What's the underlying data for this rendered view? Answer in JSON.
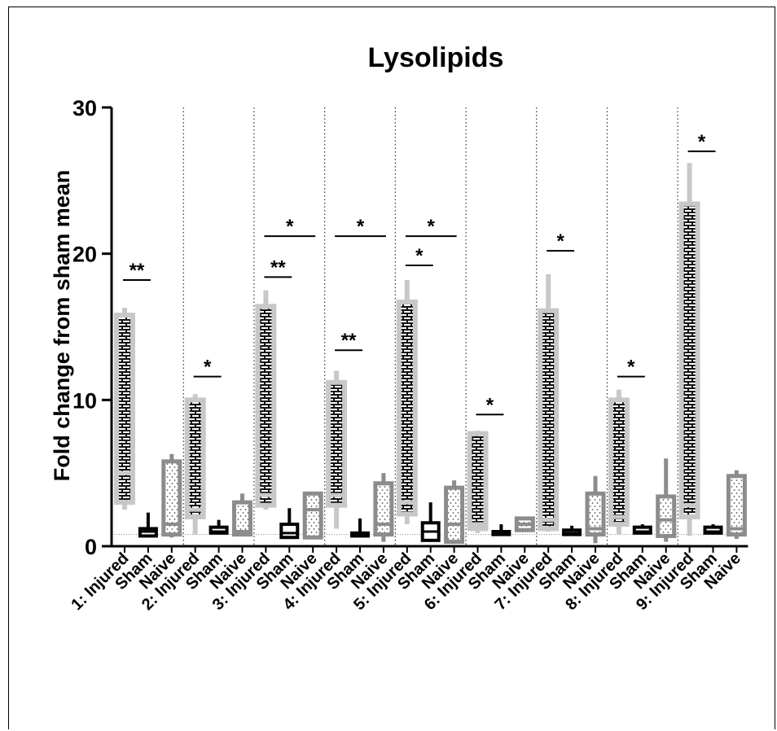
{
  "chart_data": {
    "type": "box",
    "title": "Lysolipids",
    "xlabel": "",
    "ylabel": "Fold change from sham mean",
    "ylim": [
      0,
      30
    ],
    "yticks": [
      0,
      10,
      20,
      30
    ],
    "reference_line_y": 0.8,
    "groups": [
      "1",
      "2",
      "3",
      "4",
      "5",
      "6",
      "7",
      "8",
      "9"
    ],
    "categories": [
      "1: Injured",
      "Sham",
      "Naive",
      "2: Injured",
      "Sham",
      "Naive",
      "3: Injured",
      "Sham",
      "Naive",
      "4: Injured",
      "Sham",
      "Naive",
      "5: Injured",
      "Sham",
      "Naive",
      "6: Injured",
      "Sham",
      "Naive",
      "7: Injured",
      "Sham",
      "Naive",
      "8: Injured",
      "Sham",
      "Naive",
      "9: Injured",
      "Sham",
      "Naive"
    ],
    "boxes": [
      {
        "condition": "Injured",
        "min": 2.5,
        "q1": 3.0,
        "median": 5.0,
        "q3": 15.8,
        "max": 16.3
      },
      {
        "condition": "Sham",
        "min": 0.6,
        "q1": 0.7,
        "median": 1.0,
        "q3": 1.2,
        "max": 2.3
      },
      {
        "condition": "Naive",
        "min": 0.6,
        "q1": 0.8,
        "median": 1.5,
        "q3": 5.8,
        "max": 6.3
      },
      {
        "condition": "Injured",
        "min": 0.8,
        "q1": 2.0,
        "median": 2.5,
        "q3": 10.0,
        "max": 10.4
      },
      {
        "condition": "Sham",
        "min": 0.8,
        "q1": 0.9,
        "median": 1.0,
        "q3": 1.3,
        "max": 1.8
      },
      {
        "condition": "Naive",
        "min": 0.8,
        "q1": 0.8,
        "median": 1.0,
        "q3": 3.0,
        "max": 3.6
      },
      {
        "condition": "Injured",
        "min": 2.5,
        "q1": 2.8,
        "median": 3.5,
        "q3": 16.4,
        "max": 17.5
      },
      {
        "condition": "Sham",
        "min": 0.6,
        "q1": 0.6,
        "median": 0.9,
        "q3": 1.5,
        "max": 2.6
      },
      {
        "condition": "Naive",
        "min": 0.5,
        "q1": 0.6,
        "median": 2.5,
        "q3": 3.6,
        "max": 3.7
      },
      {
        "condition": "Injured",
        "min": 1.2,
        "q1": 2.8,
        "median": 3.5,
        "q3": 11.2,
        "max": 12.0
      },
      {
        "condition": "Sham",
        "min": 0.7,
        "q1": 0.7,
        "median": 0.8,
        "q3": 0.9,
        "max": 1.9
      },
      {
        "condition": "Naive",
        "min": 0.3,
        "q1": 0.8,
        "median": 1.5,
        "q3": 4.3,
        "max": 5.0
      },
      {
        "condition": "Injured",
        "min": 1.5,
        "q1": 2.2,
        "median": 3.0,
        "q3": 16.7,
        "max": 18.2
      },
      {
        "condition": "Sham",
        "min": 0.4,
        "q1": 0.4,
        "median": 1.0,
        "q3": 1.6,
        "max": 3.0
      },
      {
        "condition": "Naive",
        "min": 0.2,
        "q1": 0.3,
        "median": 1.5,
        "q3": 4.0,
        "max": 4.5
      },
      {
        "condition": "Injured",
        "min": 0.9,
        "q1": 1.2,
        "median": 1.5,
        "q3": 7.7,
        "max": 7.9
      },
      {
        "condition": "Sham",
        "min": 0.8,
        "q1": 0.8,
        "median": 0.9,
        "q3": 1.0,
        "max": 1.5
      },
      {
        "condition": "Naive",
        "min": 1.0,
        "q1": 1.1,
        "median": 1.5,
        "q3": 1.9,
        "max": 2.0
      },
      {
        "condition": "Injured",
        "min": 1.0,
        "q1": 1.2,
        "median": 1.8,
        "q3": 16.1,
        "max": 18.6
      },
      {
        "condition": "Sham",
        "min": 0.8,
        "q1": 0.8,
        "median": 0.9,
        "q3": 1.1,
        "max": 1.4
      },
      {
        "condition": "Naive",
        "min": 0.2,
        "q1": 0.8,
        "median": 1.2,
        "q3": 3.6,
        "max": 4.8
      },
      {
        "condition": "Injured",
        "min": 0.8,
        "q1": 1.5,
        "median": 2.0,
        "q3": 10.0,
        "max": 10.7
      },
      {
        "condition": "Sham",
        "min": 0.8,
        "q1": 0.9,
        "median": 1.0,
        "q3": 1.3,
        "max": 1.5
      },
      {
        "condition": "Naive",
        "min": 0.3,
        "q1": 0.7,
        "median": 1.8,
        "q3": 3.4,
        "max": 6.0
      },
      {
        "condition": "Injured",
        "min": 0.7,
        "q1": 2.0,
        "median": 2.8,
        "q3": 23.4,
        "max": 26.2
      },
      {
        "condition": "Sham",
        "min": 0.8,
        "q1": 0.9,
        "median": 1.0,
        "q3": 1.3,
        "max": 1.5
      },
      {
        "condition": "Naive",
        "min": 0.5,
        "q1": 0.8,
        "median": 1.2,
        "q3": 4.8,
        "max": 5.2
      }
    ],
    "significance_brackets": [
      {
        "from": 0,
        "to": 1,
        "y": 18.2,
        "label": "**"
      },
      {
        "from": 3,
        "to": 4,
        "y": 11.6,
        "label": "*"
      },
      {
        "from": 6,
        "to": 7,
        "y": 18.4,
        "label": "**"
      },
      {
        "from": 6,
        "to": 8,
        "y": 21.2,
        "label": "*"
      },
      {
        "from": 9,
        "to": 10,
        "y": 13.4,
        "label": "**"
      },
      {
        "from": 9,
        "to": 11,
        "y": 21.2,
        "label": "*"
      },
      {
        "from": 12,
        "to": 13,
        "y": 19.2,
        "label": "*"
      },
      {
        "from": 12,
        "to": 14,
        "y": 21.2,
        "label": "*"
      },
      {
        "from": 15,
        "to": 16,
        "y": 9.0,
        "label": "*"
      },
      {
        "from": 18,
        "to": 19,
        "y": 20.2,
        "label": "*"
      },
      {
        "from": 21,
        "to": 22,
        "y": 11.6,
        "label": "*"
      },
      {
        "from": 24,
        "to": 25,
        "y": 27.0,
        "label": "*"
      }
    ],
    "styles": {
      "Injured": {
        "outline": "#c8c8c8",
        "fill": "#111111",
        "pattern": "bricks-white"
      },
      "Sham": {
        "outline": "#000000",
        "fill": "#ffffff",
        "pattern": "none"
      },
      "Naive": {
        "outline": "#8c8c8c",
        "fill": "#ffffff",
        "pattern": "dots"
      }
    },
    "grid": false,
    "group_separators": "dotted",
    "legend": "none"
  }
}
